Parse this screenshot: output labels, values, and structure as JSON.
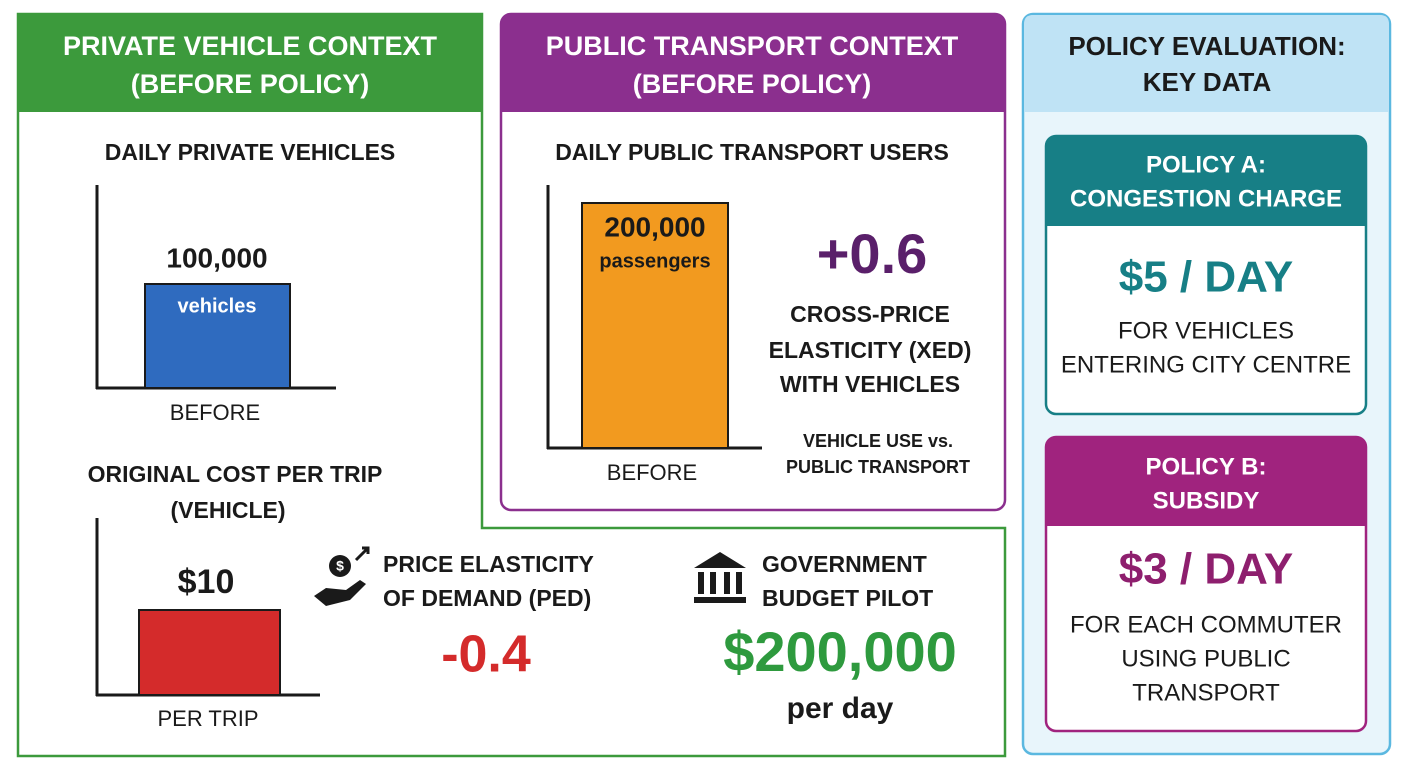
{
  "private_panel": {
    "title_lines": [
      "PRIVATE VEHICLE CONTEXT",
      "(BEFORE POLICY)"
    ],
    "vehicles_chart": {
      "title": "DAILY PRIVATE VEHICLES",
      "value": "100,000",
      "unit": "vehicles",
      "x_label": "BEFORE"
    },
    "cost_chart": {
      "title_lines": [
        "ORIGINAL COST PER TRIP",
        "(VEHICLE)"
      ],
      "value": "$10",
      "x_label": "PER TRIP"
    },
    "ped": {
      "label_lines": [
        "PRICE ELASTICITY",
        "OF DEMAND (PED)"
      ],
      "value": "-0.4"
    },
    "budget": {
      "label_lines": [
        "GOVERNMENT",
        "BUDGET PILOT"
      ],
      "value": "$200,000",
      "unit": "per day"
    }
  },
  "public_panel": {
    "title_lines": [
      "PUBLIC TRANSPORT CONTEXT",
      "(BEFORE POLICY)"
    ],
    "users_chart": {
      "title": "DAILY PUBLIC TRANSPORT USERS",
      "value": "200,000",
      "unit": "passengers",
      "x_label": "BEFORE"
    },
    "xed": {
      "value": "+0.6",
      "label_lines": [
        "CROSS-PRICE",
        "ELASTICITY (XED)",
        "WITH VEHICLES"
      ],
      "note_lines": [
        "VEHICLE USE vs.",
        "PUBLIC TRANSPORT"
      ]
    }
  },
  "policy_panel": {
    "title_lines": [
      "POLICY EVALUATION:",
      "KEY DATA"
    ],
    "policies": [
      {
        "title_lines": [
          "POLICY A:",
          "CONGESTION CHARGE"
        ],
        "amount": "$5 / DAY",
        "desc_lines": [
          "FOR VEHICLES",
          "ENTERING CITY CENTRE"
        ]
      },
      {
        "title_lines": [
          "POLICY B:",
          "SUBSIDY"
        ],
        "amount": "$3 / DAY",
        "desc_lines": [
          "FOR EACH COMMUTER",
          "USING PUBLIC",
          "TRANSPORT"
        ]
      }
    ]
  }
}
